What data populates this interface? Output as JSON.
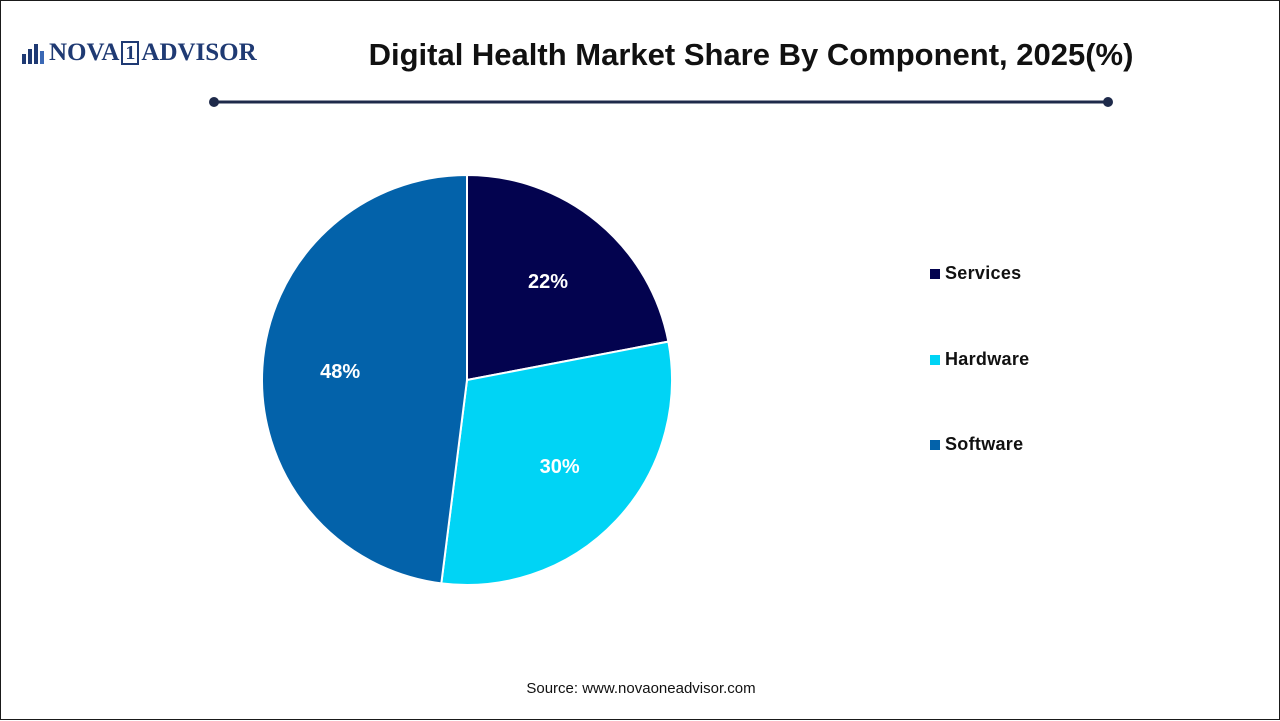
{
  "brand": {
    "logo_left": "NOVA",
    "logo_one": "1",
    "logo_right": "ADVISOR"
  },
  "header": {
    "title": "Digital Health Market Share By Component, 2025(%)"
  },
  "footer": {
    "source": "Source: www.novaoneadvisor.com"
  },
  "colors": {
    "services": "#03034f",
    "hardware": "#00d4f5",
    "software": "#0362aa",
    "rule": "#1e2a4a",
    "brand": "#1f3a73"
  },
  "chart_data": {
    "type": "pie",
    "title": "Digital Health Market Share By Component, 2025(%)",
    "categories": [
      "Services",
      "Hardware",
      "Software"
    ],
    "values": [
      22,
      30,
      48
    ],
    "value_labels": [
      "22%",
      "30%",
      "48%"
    ],
    "colors": [
      "#03034f",
      "#00d4f5",
      "#0362aa"
    ],
    "start": "12 o'clock, clockwise",
    "legend_position": "right"
  }
}
